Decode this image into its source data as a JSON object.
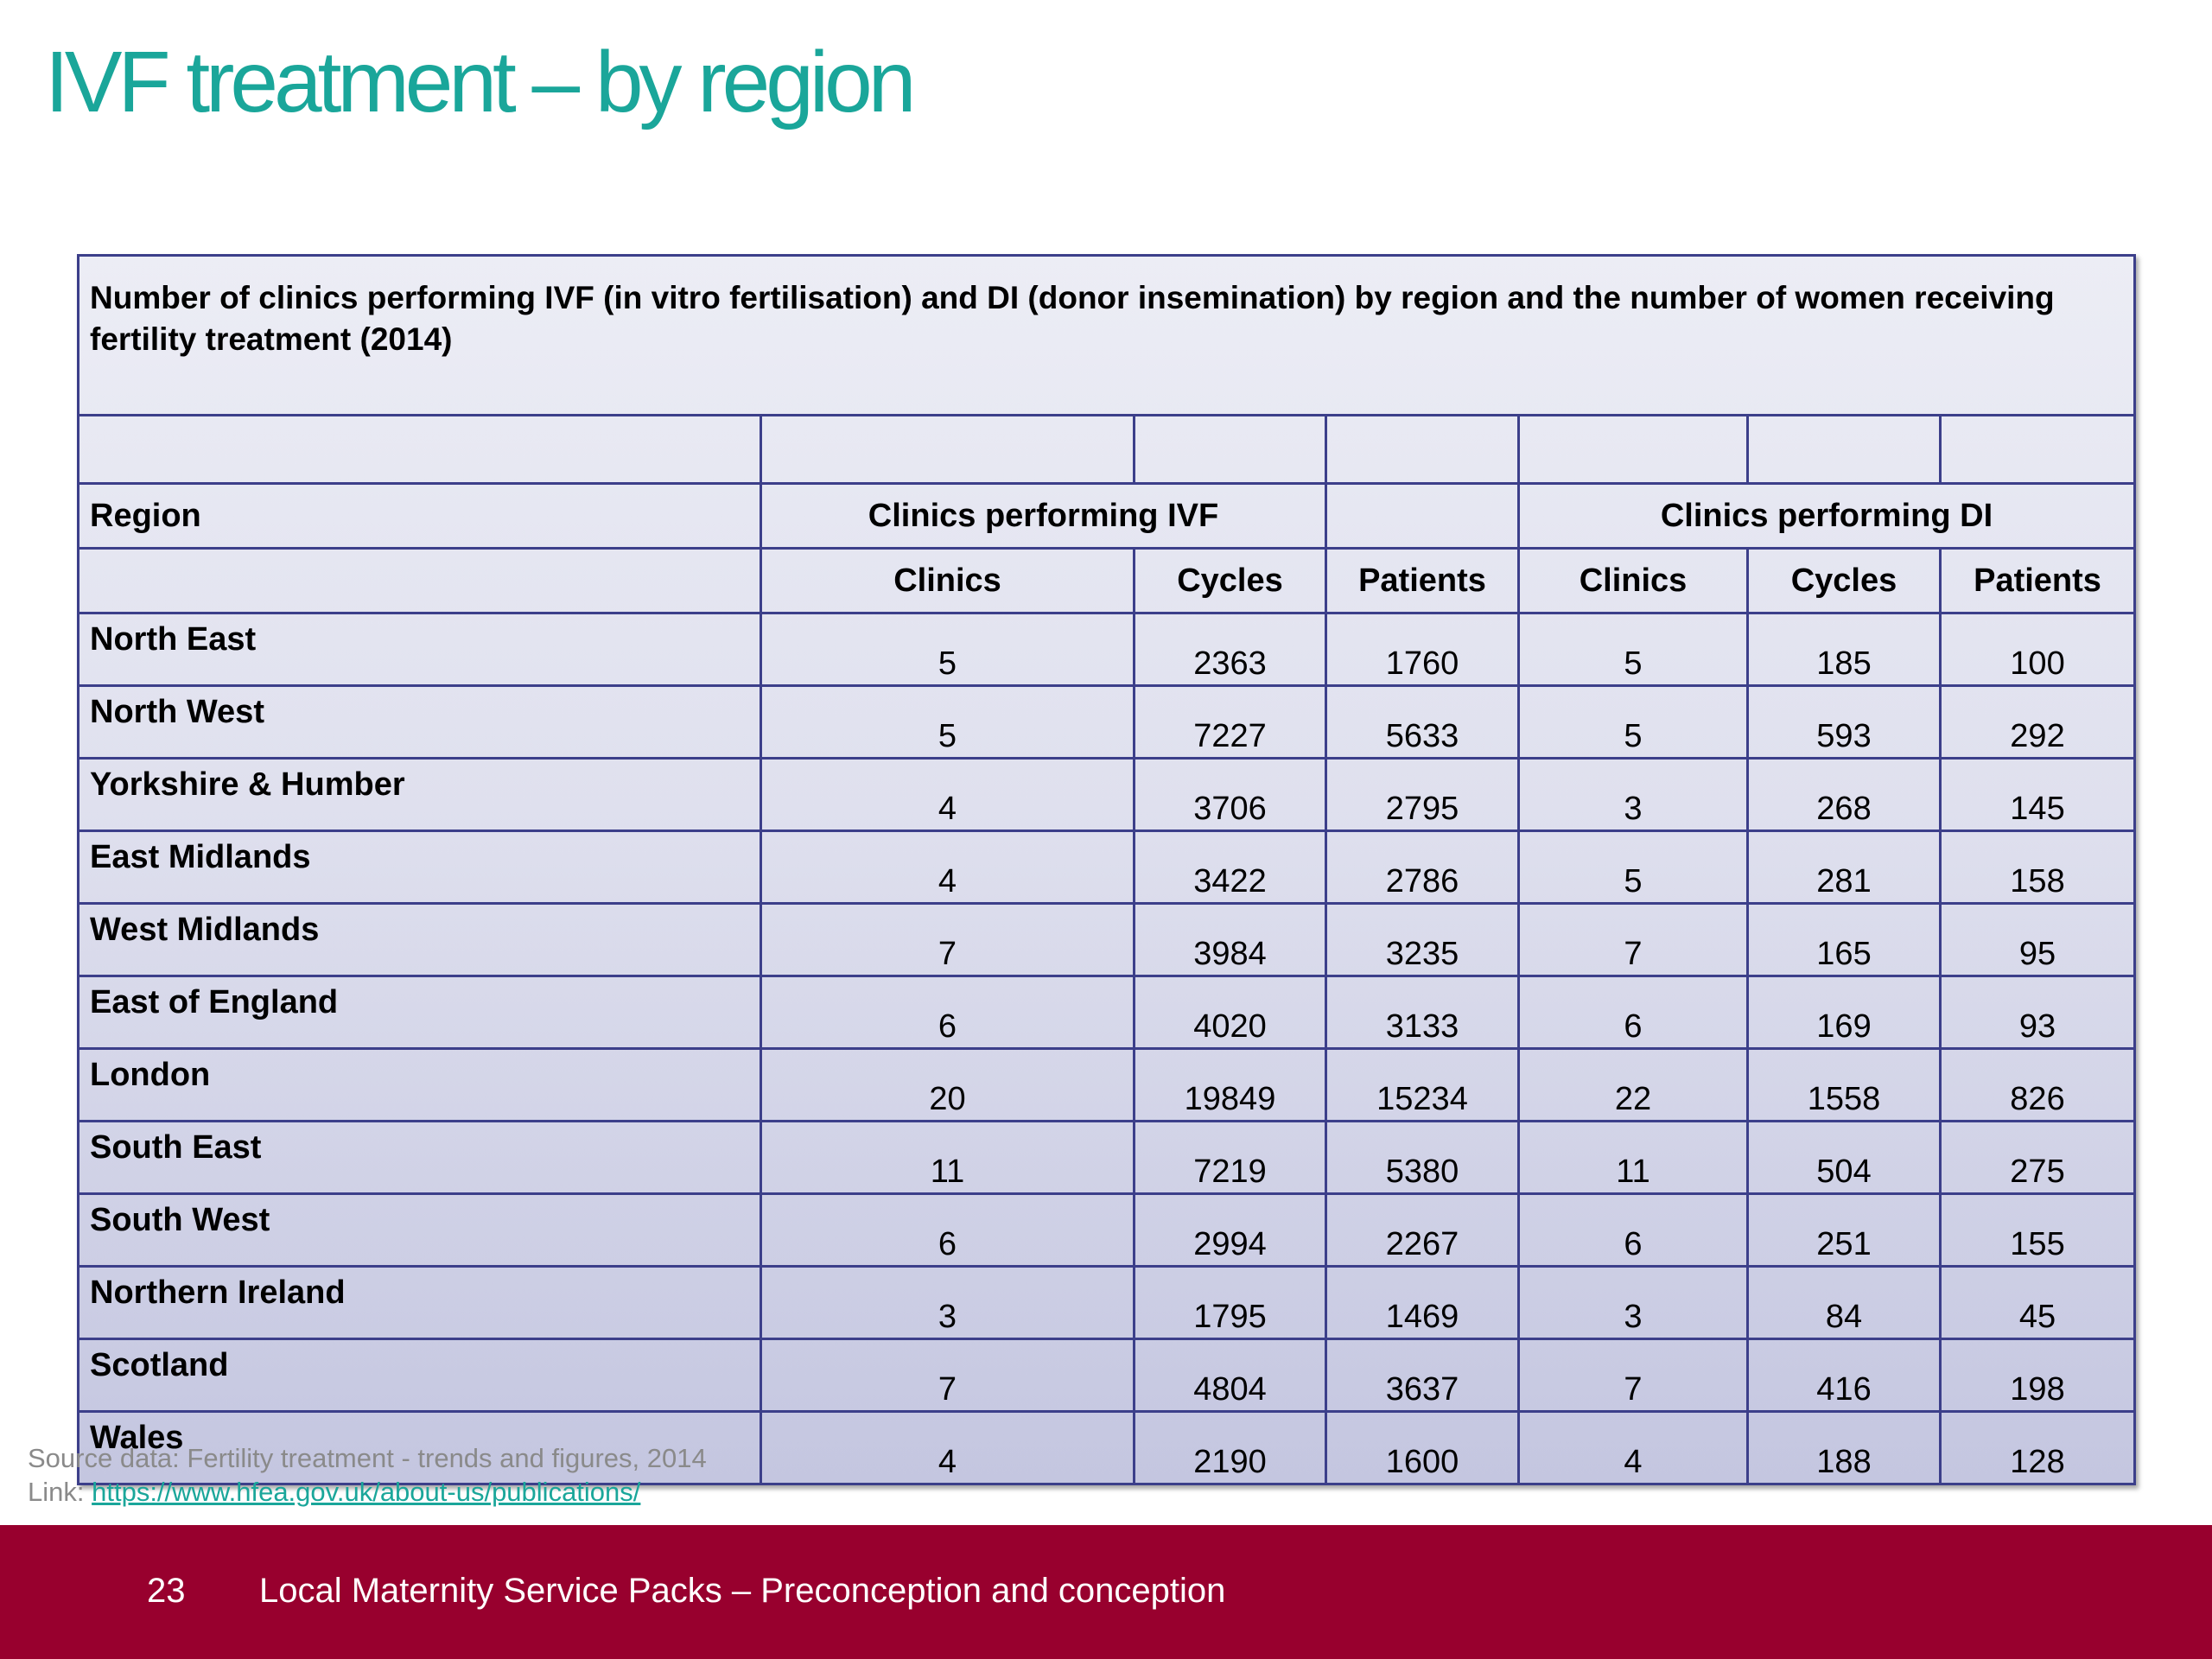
{
  "title": "IVF treatment – by region",
  "table": {
    "caption": "Number of clinics performing IVF (in vitro fertilisation)  and DI (donor insemination)  by region and the number of women receiving fertility treatment (2014)",
    "header": {
      "region": "Region",
      "ivf_group": "Clinics performing IVF",
      "di_group": "Clinics performing DI"
    },
    "subheader": [
      "Clinics",
      "Cycles",
      "Patients",
      "Clinics",
      "Cycles",
      "Patients"
    ],
    "rows": [
      {
        "region": "North East",
        "values": [
          "5",
          "2363",
          "1760",
          "5",
          "185",
          "100"
        ]
      },
      {
        "region": "North West",
        "values": [
          "5",
          "7227",
          "5633",
          "5",
          "593",
          "292"
        ]
      },
      {
        "region": "Yorkshire & Humber",
        "values": [
          "4",
          "3706",
          "2795",
          "3",
          "268",
          "145"
        ]
      },
      {
        "region": "East Midlands",
        "values": [
          "4",
          "3422",
          "2786",
          "5",
          "281",
          "158"
        ]
      },
      {
        "region": "West Midlands",
        "values": [
          "7",
          "3984",
          "3235",
          "7",
          "165",
          "95"
        ]
      },
      {
        "region": "East of England",
        "values": [
          "6",
          "4020",
          "3133",
          "6",
          "169",
          "93"
        ]
      },
      {
        "region": "London",
        "values": [
          "20",
          "19849",
          "15234",
          "22",
          "1558",
          "826"
        ]
      },
      {
        "region": "South East",
        "values": [
          "11",
          "7219",
          "5380",
          "11",
          "504",
          "275"
        ]
      },
      {
        "region": "South West",
        "values": [
          "6",
          "2994",
          "2267",
          "6",
          "251",
          "155"
        ]
      },
      {
        "region": "Northern Ireland",
        "values": [
          "3",
          "1795",
          "1469",
          "3",
          "84",
          "45"
        ]
      },
      {
        "region": "Scotland",
        "values": [
          "7",
          "4804",
          "3637",
          "7",
          "416",
          "198"
        ]
      },
      {
        "region": "Wales",
        "values": [
          "4",
          "2190",
          "1600",
          "4",
          "188",
          "128"
        ]
      }
    ]
  },
  "source": {
    "text": "Source data: Fertility treatment - trends and figures, 2014",
    "link_prefix": "Link: ",
    "link_text": "https://www.hfea.gov.uk/about-us/publications/"
  },
  "footer": {
    "page_number": "23",
    "text": "Local Maternity Service Packs – Preconception and conception"
  },
  "colors": {
    "title": "#1aa69a",
    "footer_bg": "#98002e",
    "table_border": "#3c3f8a",
    "link": "#1aa69a"
  }
}
